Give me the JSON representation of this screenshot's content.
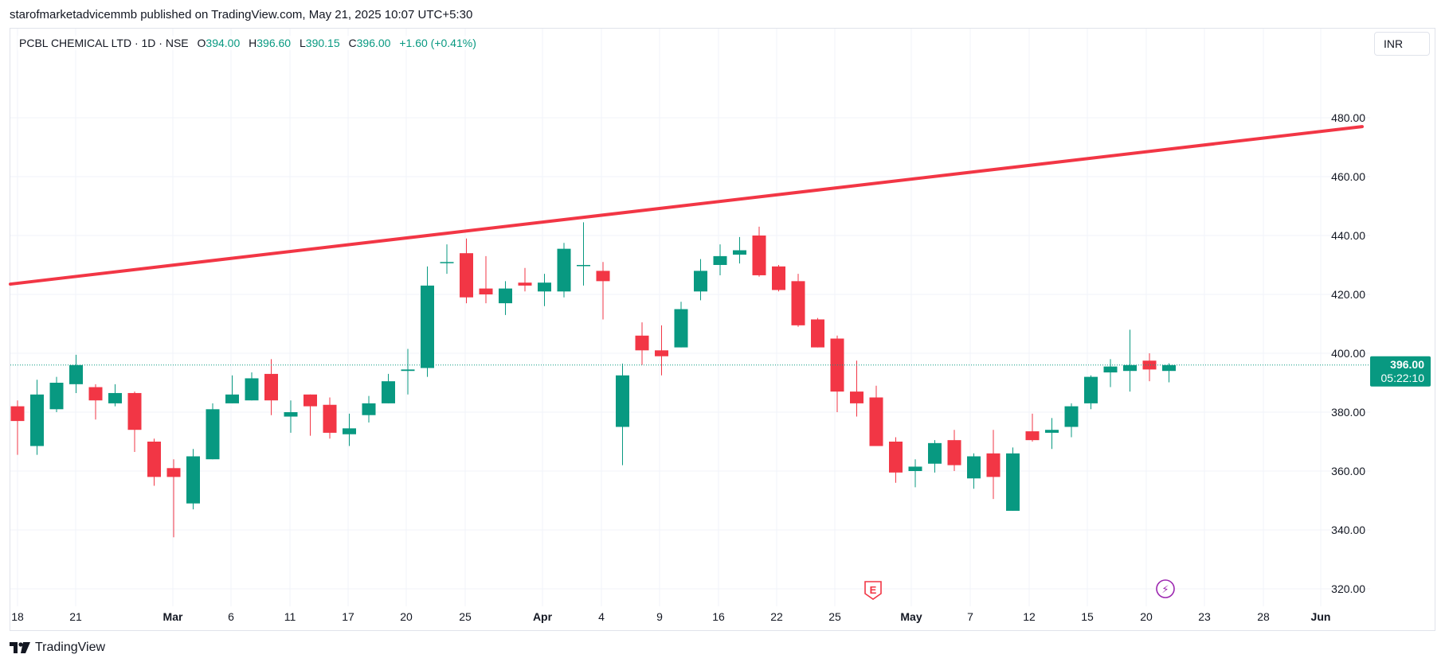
{
  "publisher_line": "starofmarketadvicemmb published on TradingView.com, May 21, 2025 10:07 UTC+5:30",
  "legend": {
    "symbol": "PCBL CHEMICAL LTD · 1D · NSE",
    "open_label": "O",
    "open": "394.00",
    "high_label": "H",
    "high": "396.60",
    "low_label": "L",
    "low": "390.15",
    "close_label": "C",
    "close": "396.00",
    "change": "+1.60 (+0.41%)"
  },
  "currency": "INR",
  "footer": {
    "logo_icon": "tradingview-logo-icon",
    "brand": "TradingView"
  },
  "colors": {
    "up": "#089981",
    "down": "#f23645",
    "trendline": "#f23645",
    "grid": "#f0f3fa",
    "marker_purple": "#9c27b0"
  },
  "chart_data": {
    "type": "candlestick",
    "y_axis": {
      "ylim": [
        316,
        505
      ],
      "ticks": [
        "320.00",
        "340.00",
        "360.00",
        "380.00",
        "400.00",
        "420.00",
        "440.00",
        "460.00",
        "480.00"
      ]
    },
    "x_axis": {
      "ticks": [
        {
          "label": "18",
          "bold": false
        },
        {
          "label": "21",
          "bold": false
        },
        {
          "label": "Mar",
          "bold": true
        },
        {
          "label": "6",
          "bold": false
        },
        {
          "label": "11",
          "bold": false
        },
        {
          "label": "17",
          "bold": false
        },
        {
          "label": "20",
          "bold": false
        },
        {
          "label": "25",
          "bold": false
        },
        {
          "label": "Apr",
          "bold": true
        },
        {
          "label": "4",
          "bold": false
        },
        {
          "label": "9",
          "bold": false
        },
        {
          "label": "16",
          "bold": false
        },
        {
          "label": "22",
          "bold": false
        },
        {
          "label": "25",
          "bold": false
        },
        {
          "label": "May",
          "bold": true
        },
        {
          "label": "7",
          "bold": false
        },
        {
          "label": "12",
          "bold": false
        },
        {
          "label": "15",
          "bold": false
        },
        {
          "label": "20",
          "bold": false
        },
        {
          "label": "23",
          "bold": false
        },
        {
          "label": "28",
          "bold": false
        },
        {
          "label": "Jun",
          "bold": true
        }
      ]
    },
    "candles": [
      {
        "o": 382,
        "h": 384,
        "l": 365.5,
        "c": 377
      },
      {
        "o": 368.5,
        "h": 391,
        "l": 365.5,
        "c": 386
      },
      {
        "o": 381,
        "h": 392,
        "l": 380,
        "c": 390
      },
      {
        "o": 389.5,
        "h": 399.5,
        "l": 386.5,
        "c": 396
      },
      {
        "o": 388.5,
        "h": 389.5,
        "l": 377.5,
        "c": 384
      },
      {
        "o": 383,
        "h": 389.5,
        "l": 382,
        "c": 386.5
      },
      {
        "o": 386.5,
        "h": 387,
        "l": 366.5,
        "c": 374
      },
      {
        "o": 370,
        "h": 371,
        "l": 355,
        "c": 358
      },
      {
        "o": 361,
        "h": 364,
        "l": 337.5,
        "c": 358
      },
      {
        "o": 349,
        "h": 367.5,
        "l": 347,
        "c": 365
      },
      {
        "o": 364,
        "h": 383,
        "l": 364,
        "c": 381
      },
      {
        "o": 383,
        "h": 392.5,
        "l": 383,
        "c": 386
      },
      {
        "o": 384,
        "h": 393.5,
        "l": 384,
        "c": 391.5
      },
      {
        "o": 393,
        "h": 398,
        "l": 379,
        "c": 384
      },
      {
        "o": 378.5,
        "h": 384,
        "l": 373,
        "c": 380
      },
      {
        "o": 386,
        "h": 386,
        "l": 372,
        "c": 382
      },
      {
        "o": 382.5,
        "h": 385,
        "l": 371,
        "c": 373
      },
      {
        "o": 372.5,
        "h": 379.5,
        "l": 368.5,
        "c": 374.5
      },
      {
        "o": 379,
        "h": 385.5,
        "l": 376.5,
        "c": 383
      },
      {
        "o": 383,
        "h": 393,
        "l": 383,
        "c": 390.5
      },
      {
        "o": 394,
        "h": 401.5,
        "l": 386,
        "c": 394.5
      },
      {
        "o": 395,
        "h": 429.5,
        "l": 392,
        "c": 423
      },
      {
        "o": 431,
        "h": 437,
        "l": 427,
        "c": 431
      },
      {
        "o": 434,
        "h": 439,
        "l": 417,
        "c": 419
      },
      {
        "o": 422,
        "h": 433,
        "l": 417,
        "c": 420
      },
      {
        "o": 417,
        "h": 424.5,
        "l": 413,
        "c": 422
      },
      {
        "o": 424,
        "h": 429,
        "l": 421,
        "c": 423
      },
      {
        "o": 421,
        "h": 427,
        "l": 416,
        "c": 424
      },
      {
        "o": 421,
        "h": 437.5,
        "l": 419,
        "c": 435.5
      },
      {
        "o": 430,
        "h": 444.5,
        "l": 423,
        "c": 430
      },
      {
        "o": 428,
        "h": 431,
        "l": 411.5,
        "c": 424.5
      },
      {
        "o": 375,
        "h": 396.5,
        "l": 362,
        "c": 392.5
      },
      {
        "o": 406,
        "h": 410.5,
        "l": 396,
        "c": 401
      },
      {
        "o": 401,
        "h": 409.5,
        "l": 392.5,
        "c": 399
      },
      {
        "o": 402,
        "h": 417.5,
        "l": 402,
        "c": 415
      },
      {
        "o": 421,
        "h": 432,
        "l": 418,
        "c": 428
      },
      {
        "o": 430,
        "h": 437,
        "l": 426.5,
        "c": 433
      },
      {
        "o": 433.5,
        "h": 439.5,
        "l": 430.5,
        "c": 435
      },
      {
        "o": 440,
        "h": 443,
        "l": 426,
        "c": 426.5
      },
      {
        "o": 429.5,
        "h": 430,
        "l": 421,
        "c": 421.5
      },
      {
        "o": 424.5,
        "h": 427,
        "l": 409,
        "c": 409.5
      },
      {
        "o": 411.5,
        "h": 412,
        "l": 402,
        "c": 402
      },
      {
        "o": 405,
        "h": 406,
        "l": 380,
        "c": 387
      },
      {
        "o": 387,
        "h": 397.5,
        "l": 378.5,
        "c": 383
      },
      {
        "o": 385,
        "h": 389,
        "l": 368.5,
        "c": 368.5
      },
      {
        "o": 370,
        "h": 371.5,
        "l": 356,
        "c": 359.5
      },
      {
        "o": 360,
        "h": 364,
        "l": 354.5,
        "c": 361.5
      },
      {
        "o": 362.5,
        "h": 370.5,
        "l": 359.5,
        "c": 369.5
      },
      {
        "o": 370.5,
        "h": 374,
        "l": 360,
        "c": 362
      },
      {
        "o": 357.5,
        "h": 366,
        "l": 354,
        "c": 365
      },
      {
        "o": 366,
        "h": 374,
        "l": 350.5,
        "c": 358
      },
      {
        "o": 346.5,
        "h": 368,
        "l": 346.5,
        "c": 366
      },
      {
        "o": 373.5,
        "h": 379.5,
        "l": 370,
        "c": 370.5
      },
      {
        "o": 373,
        "h": 378,
        "l": 367.5,
        "c": 374
      },
      {
        "o": 375,
        "h": 383,
        "l": 371.5,
        "c": 382
      },
      {
        "o": 383,
        "h": 392.5,
        "l": 381,
        "c": 392
      },
      {
        "o": 393.5,
        "h": 398,
        "l": 388.5,
        "c": 395.5
      },
      {
        "o": 394,
        "h": 408,
        "l": 387,
        "c": 396
      },
      {
        "o": 397.5,
        "h": 400,
        "l": 390.5,
        "c": 394.5
      },
      {
        "o": 394,
        "h": 396.6,
        "l": 390.15,
        "c": 396
      }
    ],
    "trendline": {
      "start_value": 423.5,
      "end_value": 477
    },
    "last_price": {
      "value": 396.0,
      "label": "396.00",
      "countdown": "05:22:10"
    },
    "event_markers": [
      {
        "type": "earnings",
        "label": "E"
      },
      {
        "type": "dividend",
        "label": "⚡"
      }
    ]
  }
}
